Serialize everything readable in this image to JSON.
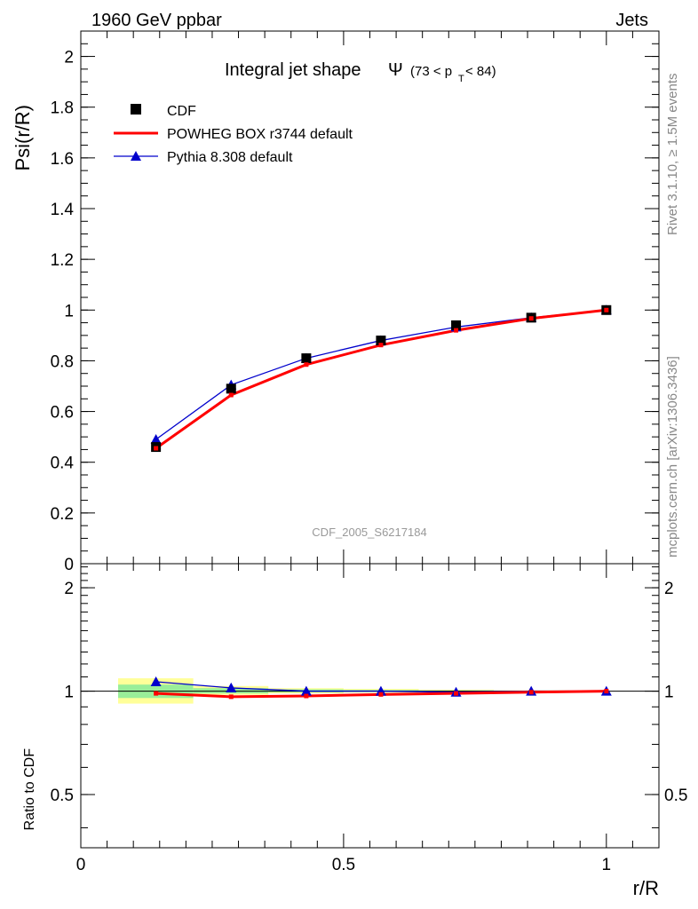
{
  "header": {
    "left": "1960 GeV ppbar",
    "right": "Jets"
  },
  "side_text": {
    "rivet": "Rivet 3.1.10, ≥ 1.5M events",
    "mcplots": "mcplots.cern.ch [arXiv:1306.3436]"
  },
  "watermark": "CDF_2005_S6217184",
  "colors": {
    "cdf": "#000000",
    "powheg": "#ff0000",
    "pythia": "#0000cc",
    "band_outer": "#ffff99",
    "band_inner": "#99ee99"
  },
  "chart_data": [
    {
      "type": "line",
      "title_main": "Integral jet shape",
      "title_symbol": "Ψ",
      "title_range": {
        "pre": "(73 < p",
        "sub": "T",
        "post": " < 84)"
      },
      "ylabel": "Psi(r/R)",
      "xlim": [
        0,
        1.1
      ],
      "ylim": [
        0,
        2.1
      ],
      "yticks": [
        "0",
        "0.2",
        "0.4",
        "0.6",
        "0.8",
        "1",
        "1.2",
        "1.4",
        "1.6",
        "1.8",
        "2"
      ],
      "legend_position": "top-left",
      "legend": [
        "CDF",
        "POWHEG BOX r3744 default",
        "Pythia 8.308 default"
      ],
      "x": [
        0.143,
        0.286,
        0.429,
        0.571,
        0.714,
        0.857,
        1.0
      ],
      "series": [
        {
          "name": "CDF",
          "style": "markers-square",
          "values": [
            0.46,
            0.69,
            0.81,
            0.88,
            0.94,
            0.97,
            1.0
          ]
        },
        {
          "name": "POWHEG BOX r3744 default",
          "style": "line-thick",
          "values": [
            0.455,
            0.665,
            0.785,
            0.862,
            0.92,
            0.967,
            1.0
          ]
        },
        {
          "name": "Pythia 8.308 default",
          "style": "line-triangle",
          "values": [
            0.49,
            0.705,
            0.81,
            0.88,
            0.933,
            0.97,
            1.0
          ]
        }
      ]
    },
    {
      "type": "line",
      "ylabel": "Ratio to CDF",
      "xlabel": "r/R",
      "xlim": [
        0,
        1.1
      ],
      "ylim": [
        0.35,
        2.35
      ],
      "log_y": true,
      "yticks": [
        "0.5",
        "1",
        "2"
      ],
      "xticks": [
        "0",
        "0.5",
        "1"
      ],
      "reference": 1.0,
      "bands": [
        {
          "x": [
            0.071,
            0.214
          ],
          "outer": [
            0.92,
            1.09
          ],
          "inner": [
            0.955,
            1.045
          ]
        },
        {
          "x": [
            0.214,
            0.357
          ],
          "outer": [
            0.975,
            1.035
          ],
          "inner": [
            0.985,
            1.02
          ]
        },
        {
          "x": [
            0.357,
            0.5
          ],
          "outer": [
            0.985,
            1.02
          ],
          "inner": [
            0.992,
            1.012
          ]
        },
        {
          "x": [
            0.5,
            0.643
          ],
          "outer": [
            0.99,
            1.015
          ],
          "inner": [
            0.995,
            1.008
          ]
        },
        {
          "x": [
            0.643,
            0.786
          ],
          "outer": [
            0.993,
            1.01
          ],
          "inner": [
            0.997,
            1.005
          ]
        },
        {
          "x": [
            0.786,
            0.929
          ],
          "outer": [
            0.995,
            1.006
          ],
          "inner": [
            0.998,
            1.003
          ]
        }
      ],
      "x": [
        0.143,
        0.286,
        0.429,
        0.571,
        0.714,
        0.857,
        1.0
      ],
      "series": [
        {
          "name": "POWHEG BOX r3744 default",
          "values": [
            0.985,
            0.963,
            0.968,
            0.978,
            0.985,
            0.993,
            1.0
          ]
        },
        {
          "name": "Pythia 8.308 default",
          "values": [
            1.065,
            1.022,
            1.0,
            1.0,
            0.993,
            1.0,
            1.0
          ]
        }
      ]
    }
  ]
}
